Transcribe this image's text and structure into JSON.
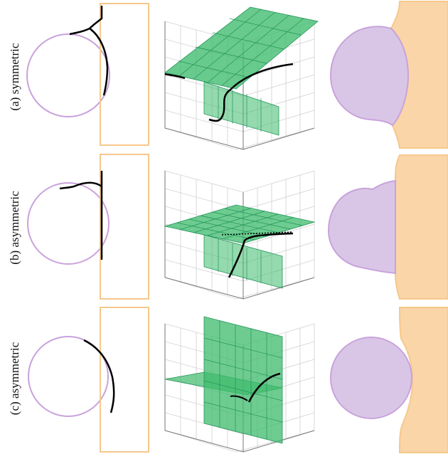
{
  "rows": [
    {
      "label": "(a) symmetric"
    },
    {
      "label": "(b) asymmetric"
    },
    {
      "label": "(c) asymmetric"
    }
  ],
  "colors": {
    "circle": "#c9a2dc",
    "circle_fill": "#d9c6e6",
    "rect": "#f6c88c",
    "rect_fill": "#f9d5a8",
    "surface": "#3dbb6b",
    "surface_stroke": "#22945a",
    "curve": "#000000",
    "grid": "#cfcfcf"
  }
}
